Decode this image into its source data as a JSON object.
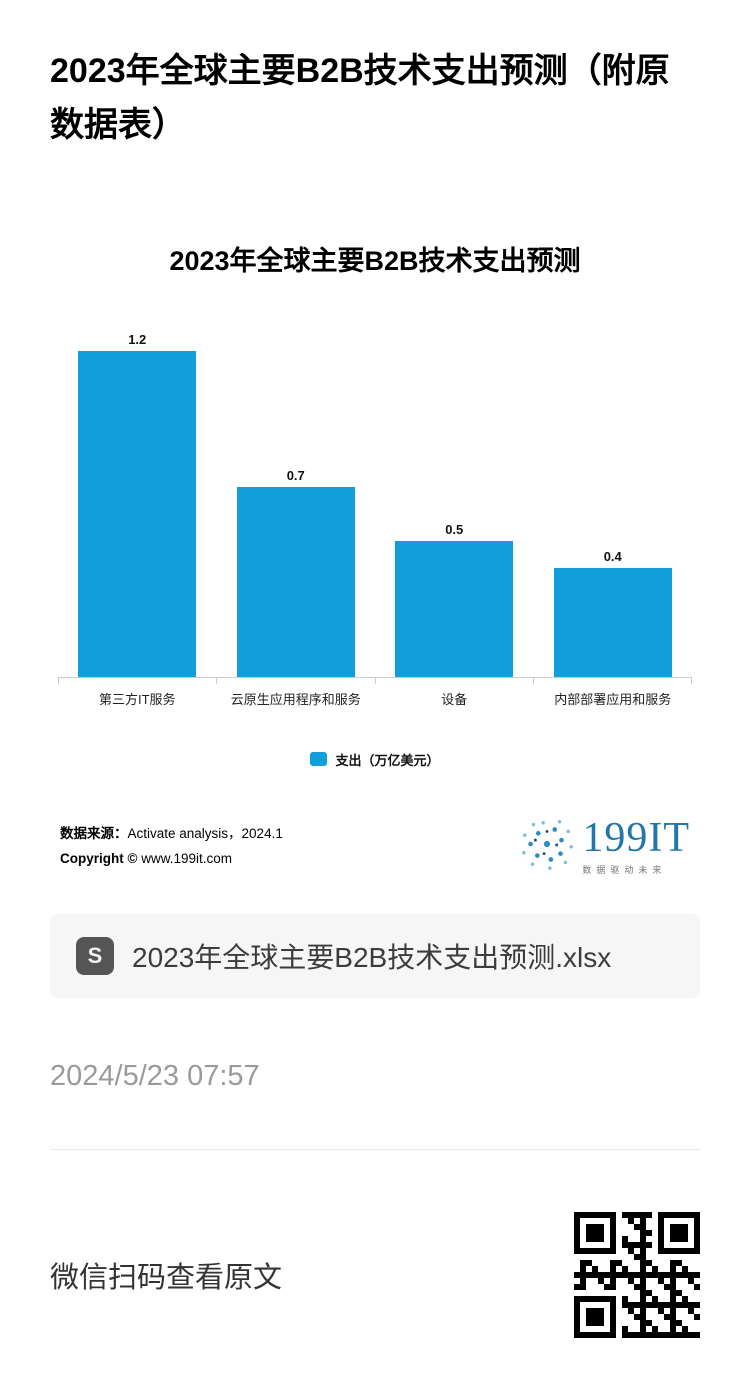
{
  "page": {
    "title": "2023年全球主要B2B技术支出预测（附原数据表）",
    "timestamp": "2024/5/23 07:57",
    "footer_text": "微信扫码查看原文"
  },
  "chart_data": {
    "type": "bar",
    "title": "2023年全球主要B2B技术支出预测",
    "categories": [
      "第三方IT服务",
      "云原生应用程序和服务",
      "设备",
      "内部部署应用和服务"
    ],
    "values": [
      1.2,
      0.7,
      0.5,
      0.4
    ],
    "value_labels": [
      "1.2",
      "0.7",
      "0.5",
      "0.4"
    ],
    "legend": [
      "支出（万亿美元）"
    ],
    "bar_color": "#119fdc",
    "ylim": [
      0,
      1.3
    ],
    "grid": false,
    "legend_position": "bottom"
  },
  "source": {
    "label": "数据来源：",
    "value": "Activate analysis，2024.1",
    "copyright_label": "Copyright ©",
    "copyright_value": "www.199it.com"
  },
  "logo": {
    "name": "199IT",
    "tagline": "数据驱动未来"
  },
  "attachment": {
    "filename": "2023年全球主要B2B技术支出预测.xlsx"
  }
}
